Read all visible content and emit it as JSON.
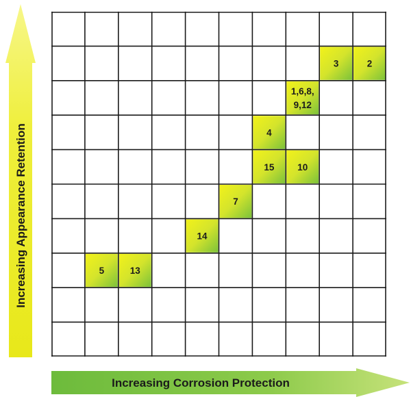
{
  "axes": {
    "y_label": "Increasing Appearance Retention",
    "x_label": "Increasing Corrosion Protection"
  },
  "grid": {
    "columns": 10,
    "rows": 10,
    "line_color": "#1a1a1a",
    "cell_fill_top": "#f0f01c",
    "cell_fill_bottom": "#7cc23a"
  },
  "cells": [
    {
      "id": "cell-3",
      "lines": [
        "3"
      ],
      "col": 9,
      "row": 2
    },
    {
      "id": "cell-2",
      "lines": [
        "2"
      ],
      "col": 10,
      "row": 2
    },
    {
      "id": "cell-1-6-8-9-12",
      "lines": [
        "1,6,8,",
        "9,12"
      ],
      "col": 8,
      "row": 3
    },
    {
      "id": "cell-4",
      "lines": [
        "4"
      ],
      "col": 7,
      "row": 4
    },
    {
      "id": "cell-15",
      "lines": [
        "15"
      ],
      "col": 7,
      "row": 5
    },
    {
      "id": "cell-10",
      "lines": [
        "10"
      ],
      "col": 8,
      "row": 5
    },
    {
      "id": "cell-7",
      "lines": [
        "7"
      ],
      "col": 6,
      "row": 6
    },
    {
      "id": "cell-14",
      "lines": [
        "14"
      ],
      "col": 5,
      "row": 7
    },
    {
      "id": "cell-5",
      "lines": [
        "5"
      ],
      "col": 2,
      "row": 8
    },
    {
      "id": "cell-13",
      "lines": [
        "13"
      ],
      "col": 3,
      "row": 8
    }
  ]
}
